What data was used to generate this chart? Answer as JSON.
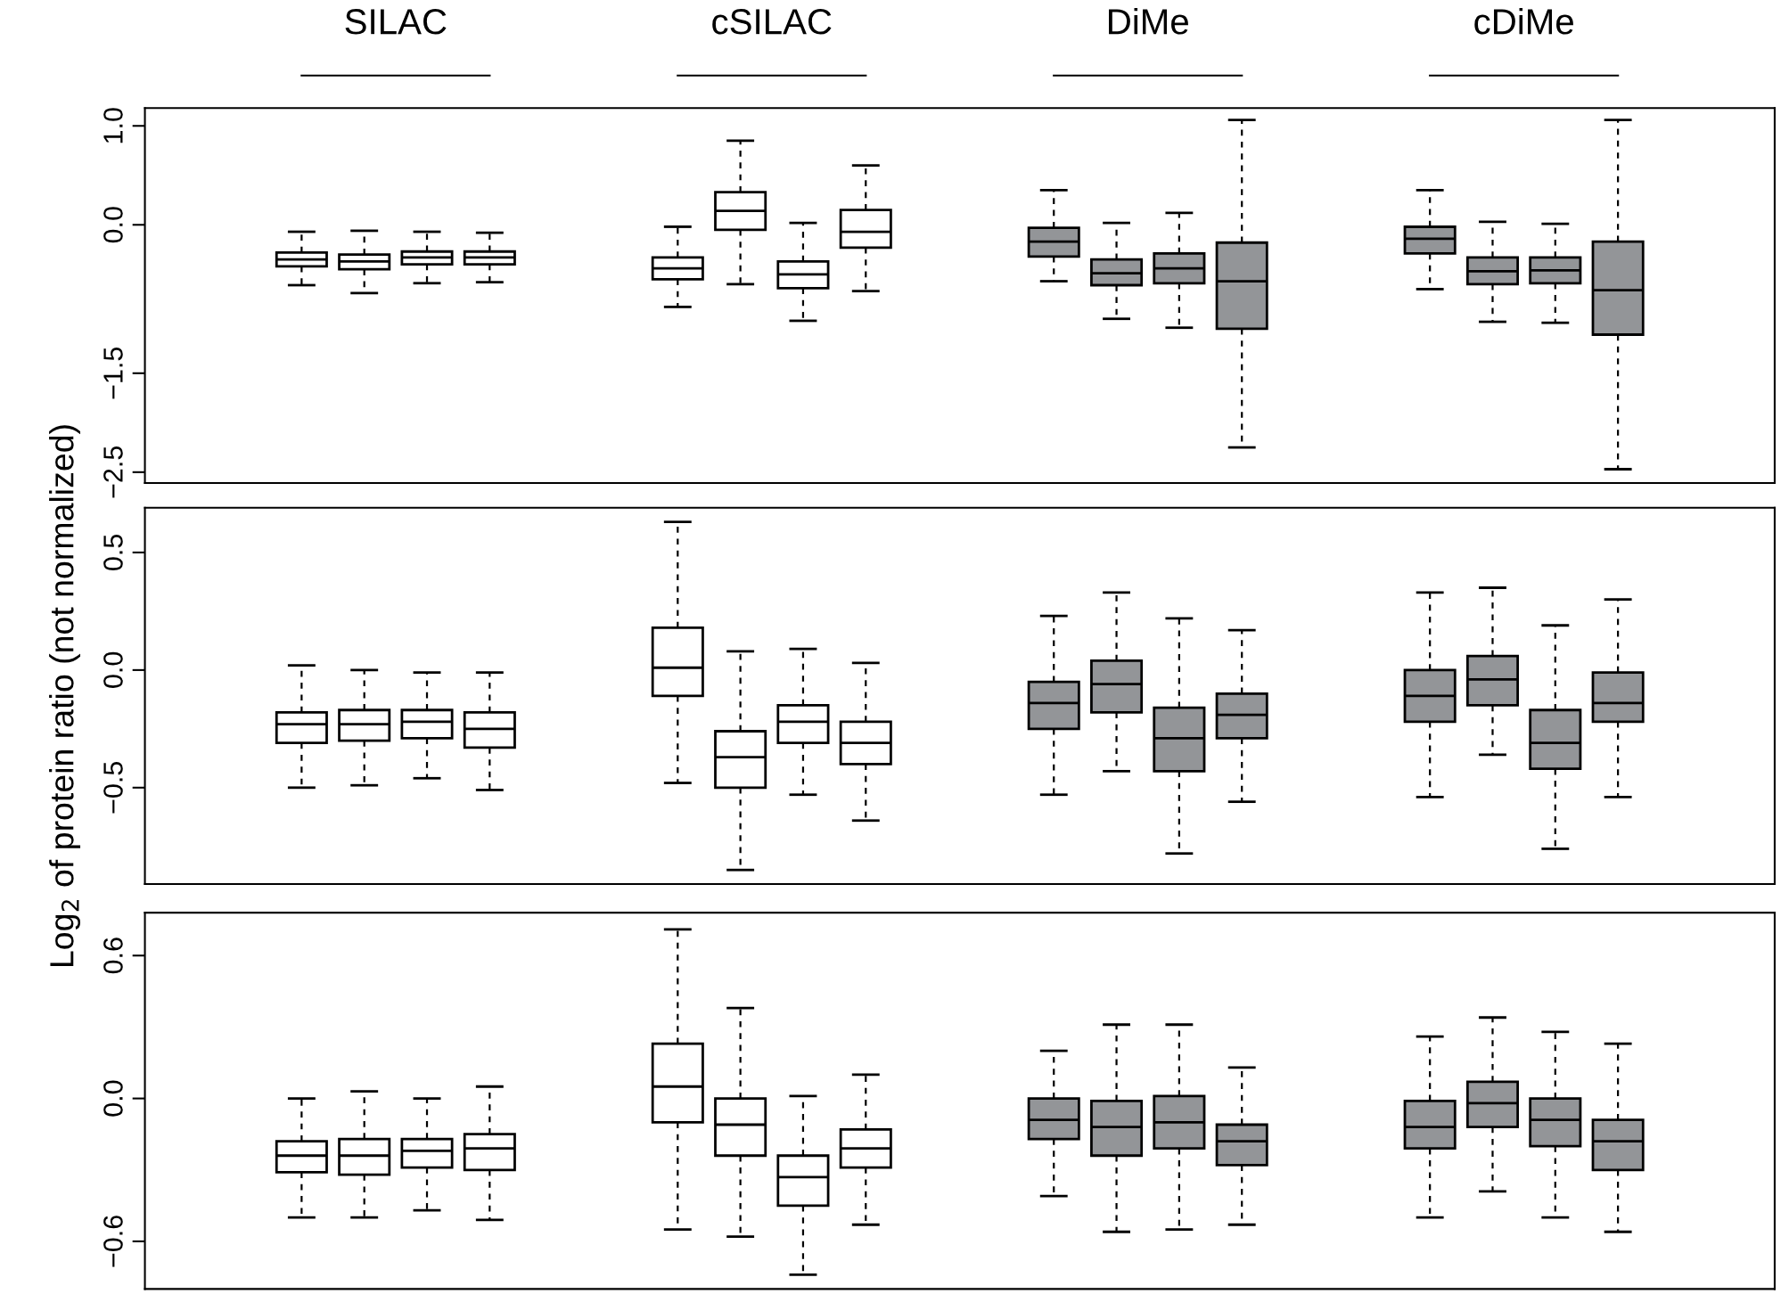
{
  "chart_data": [
    {
      "type": "box",
      "categories": [
        null,
        null,
        null,
        null,
        null,
        null,
        null,
        null,
        null,
        null,
        null,
        null,
        null,
        null,
        null,
        null,
        null,
        null,
        null,
        null,
        null,
        null,
        null,
        null,
        null,
        null
      ],
      "annotations": [
        "SILAC",
        "cSILAC",
        "DiMe",
        "cDiMe"
      ],
      "ylim": [
        -2.61,
        1.18
      ],
      "yticks": [
        {
          "value": 1.0,
          "label": "1.0"
        },
        {
          "value": 0.0,
          "label": "0.0"
        },
        {
          "value": -1.5,
          "label": "−1.5"
        },
        {
          "value": -2.5,
          "label": "−2.5"
        }
      ],
      "tick_labels": "y",
      "colors": [
        null,
        null,
        "#ffffff",
        "#ffffff",
        "#ffffff",
        "#ffffff",
        null,
        null,
        "#ffffff",
        "#ffffff",
        "#ffffff",
        "#ffffff",
        null,
        null,
        "#939598",
        "#939598",
        "#939598",
        "#939598",
        null,
        null,
        "#939598",
        "#939598",
        "#939598",
        "#939598",
        null,
        null
      ],
      "boxes": [
        null,
        null,
        {
          "low": -0.61,
          "q1": -0.42,
          "median": -0.35,
          "q3": -0.28,
          "high": -0.07
        },
        {
          "low": -0.69,
          "q1": -0.45,
          "median": -0.37,
          "q3": -0.3,
          "high": -0.06
        },
        {
          "low": -0.59,
          "q1": -0.4,
          "median": -0.33,
          "q3": -0.27,
          "high": -0.07
        },
        {
          "low": -0.58,
          "q1": -0.4,
          "median": -0.33,
          "q3": -0.27,
          "high": -0.08
        },
        null,
        null,
        {
          "low": -0.83,
          "q1": -0.55,
          "median": -0.44,
          "q3": -0.33,
          "high": -0.02
        },
        {
          "low": -0.6,
          "q1": -0.05,
          "median": 0.14,
          "q3": 0.33,
          "high": 0.85
        },
        {
          "low": -0.97,
          "q1": -0.64,
          "median": -0.5,
          "q3": -0.37,
          "high": 0.02
        },
        {
          "low": -0.67,
          "q1": -0.23,
          "median": -0.07,
          "q3": 0.15,
          "high": 0.6
        },
        null,
        null,
        {
          "low": -0.57,
          "q1": -0.32,
          "median": -0.17,
          "q3": -0.03,
          "high": 0.35
        },
        {
          "low": -0.95,
          "q1": -0.61,
          "median": -0.49,
          "q3": -0.35,
          "high": 0.02
        },
        {
          "low": -1.04,
          "q1": -0.59,
          "median": -0.44,
          "q3": -0.29,
          "high": 0.12
        },
        {
          "low": -2.25,
          "q1": -1.05,
          "median": -0.57,
          "q3": -0.18,
          "high": 1.06
        },
        null,
        null,
        {
          "low": -0.65,
          "q1": -0.29,
          "median": -0.14,
          "q3": -0.02,
          "high": 0.35
        },
        {
          "low": -0.98,
          "q1": -0.6,
          "median": -0.47,
          "q3": -0.33,
          "high": 0.03
        },
        {
          "low": -0.99,
          "q1": -0.59,
          "median": -0.46,
          "q3": -0.33,
          "high": 0.01
        },
        {
          "low": -2.47,
          "q1": -1.11,
          "median": -0.66,
          "q3": -0.17,
          "high": 1.06
        },
        null,
        null
      ]
    },
    {
      "type": "box",
      "categories": [
        null,
        null,
        null,
        null,
        null,
        null,
        null,
        null,
        null,
        null,
        null,
        null,
        null,
        null,
        null,
        null,
        null,
        null,
        null,
        null,
        null,
        null,
        null,
        null,
        null,
        null
      ],
      "ylabel": "Log$_{2}$ of protein ratio (not normalized)",
      "ylim": [
        -0.91,
        0.69
      ],
      "yticks": [
        {
          "value": 0.5,
          "label": "0.5"
        },
        {
          "value": 0.0,
          "label": "0.0"
        },
        {
          "value": -0.5,
          "label": "−0.5"
        }
      ],
      "tick_labels": "y",
      "colors": [
        null,
        null,
        "#ffffff",
        "#ffffff",
        "#ffffff",
        "#ffffff",
        null,
        null,
        "#ffffff",
        "#ffffff",
        "#ffffff",
        "#ffffff",
        null,
        null,
        "#939598",
        "#939598",
        "#939598",
        "#939598",
        null,
        null,
        "#939598",
        "#939598",
        "#939598",
        "#939598",
        null,
        null
      ],
      "boxes": [
        null,
        null,
        {
          "low": -0.5,
          "q1": -0.31,
          "median": -0.23,
          "q3": -0.18,
          "high": 0.02
        },
        {
          "low": -0.49,
          "q1": -0.3,
          "median": -0.23,
          "q3": -0.17,
          "high": 0.0
        },
        {
          "low": -0.46,
          "q1": -0.29,
          "median": -0.22,
          "q3": -0.17,
          "high": -0.01
        },
        {
          "low": -0.51,
          "q1": -0.33,
          "median": -0.25,
          "q3": -0.18,
          "high": -0.01
        },
        null,
        null,
        {
          "low": -0.48,
          "q1": -0.11,
          "median": 0.01,
          "q3": 0.18,
          "high": 0.63
        },
        {
          "low": -0.85,
          "q1": -0.5,
          "median": -0.37,
          "q3": -0.26,
          "high": 0.08
        },
        {
          "low": -0.53,
          "q1": -0.31,
          "median": -0.22,
          "q3": -0.15,
          "high": 0.09
        },
        {
          "low": -0.64,
          "q1": -0.4,
          "median": -0.31,
          "q3": -0.22,
          "high": 0.03
        },
        null,
        null,
        {
          "low": -0.53,
          "q1": -0.25,
          "median": -0.14,
          "q3": -0.05,
          "high": 0.23
        },
        {
          "low": -0.43,
          "q1": -0.18,
          "median": -0.06,
          "q3": 0.04,
          "high": 0.33
        },
        {
          "low": -0.78,
          "q1": -0.43,
          "median": -0.29,
          "q3": -0.16,
          "high": 0.22
        },
        {
          "low": -0.56,
          "q1": -0.29,
          "median": -0.19,
          "q3": -0.1,
          "high": 0.17
        },
        null,
        null,
        {
          "low": -0.54,
          "q1": -0.22,
          "median": -0.11,
          "q3": 0.0,
          "high": 0.33
        },
        {
          "low": -0.36,
          "q1": -0.15,
          "median": -0.04,
          "q3": 0.06,
          "high": 0.35
        },
        {
          "low": -0.76,
          "q1": -0.42,
          "median": -0.31,
          "q3": -0.17,
          "high": 0.19
        },
        {
          "low": -0.54,
          "q1": -0.22,
          "median": -0.14,
          "q3": -0.01,
          "high": 0.3
        },
        null,
        null
      ]
    },
    {
      "type": "box",
      "categories": [
        null,
        null,
        null,
        null,
        null,
        null,
        null,
        null,
        null,
        null,
        null,
        null,
        null,
        null,
        null,
        null,
        null,
        null,
        null,
        null,
        null,
        null,
        null,
        null,
        null,
        null
      ],
      "ylim": [
        -0.8,
        0.78
      ],
      "yticks": [
        {
          "value": 0.6,
          "label": "0.6"
        },
        {
          "value": 0.0,
          "label": "0.0"
        },
        {
          "value": -0.6,
          "label": "−0.6"
        }
      ],
      "tick_labels": "y",
      "colors": [
        null,
        null,
        "#ffffff",
        "#ffffff",
        "#ffffff",
        "#ffffff",
        null,
        null,
        "#ffffff",
        "#ffffff",
        "#ffffff",
        "#ffffff",
        null,
        null,
        "#939598",
        "#939598",
        "#939598",
        "#939598",
        null,
        null,
        "#939598",
        "#939598",
        "#939598",
        "#939598",
        null,
        null
      ],
      "boxes": [
        null,
        null,
        {
          "low": -0.5,
          "q1": -0.31,
          "median": -0.24,
          "q3": -0.18,
          "high": 0.0
        },
        {
          "low": -0.5,
          "q1": -0.32,
          "median": -0.24,
          "q3": -0.17,
          "high": 0.03
        },
        {
          "low": -0.47,
          "q1": -0.29,
          "median": -0.22,
          "q3": -0.17,
          "high": 0.0
        },
        {
          "low": -0.51,
          "q1": -0.3,
          "median": -0.21,
          "q3": -0.15,
          "high": 0.05
        },
        null,
        null,
        {
          "low": -0.55,
          "q1": -0.1,
          "median": 0.05,
          "q3": 0.23,
          "high": 0.71
        },
        {
          "low": -0.58,
          "q1": -0.24,
          "median": -0.11,
          "q3": 0.0,
          "high": 0.38
        },
        {
          "low": -0.74,
          "q1": -0.45,
          "median": -0.33,
          "q3": -0.24,
          "high": 0.01
        },
        {
          "low": -0.53,
          "q1": -0.29,
          "median": -0.21,
          "q3": -0.13,
          "high": 0.1
        },
        null,
        null,
        {
          "low": -0.41,
          "q1": -0.17,
          "median": -0.09,
          "q3": 0.0,
          "high": 0.2
        },
        {
          "low": -0.56,
          "q1": -0.24,
          "median": -0.12,
          "q3": -0.01,
          "high": 0.31
        },
        {
          "low": -0.55,
          "q1": -0.21,
          "median": -0.1,
          "q3": 0.01,
          "high": 0.31
        },
        {
          "low": -0.53,
          "q1": -0.28,
          "median": -0.18,
          "q3": -0.11,
          "high": 0.13
        },
        null,
        null,
        {
          "low": -0.5,
          "q1": -0.21,
          "median": -0.12,
          "q3": -0.01,
          "high": 0.26
        },
        {
          "low": -0.39,
          "q1": -0.12,
          "median": -0.02,
          "q3": 0.07,
          "high": 0.34
        },
        {
          "low": -0.5,
          "q1": -0.2,
          "median": -0.09,
          "q3": 0.0,
          "high": 0.28
        },
        {
          "low": -0.56,
          "q1": -0.3,
          "median": -0.18,
          "q3": -0.09,
          "high": 0.23
        },
        null,
        null
      ]
    }
  ]
}
